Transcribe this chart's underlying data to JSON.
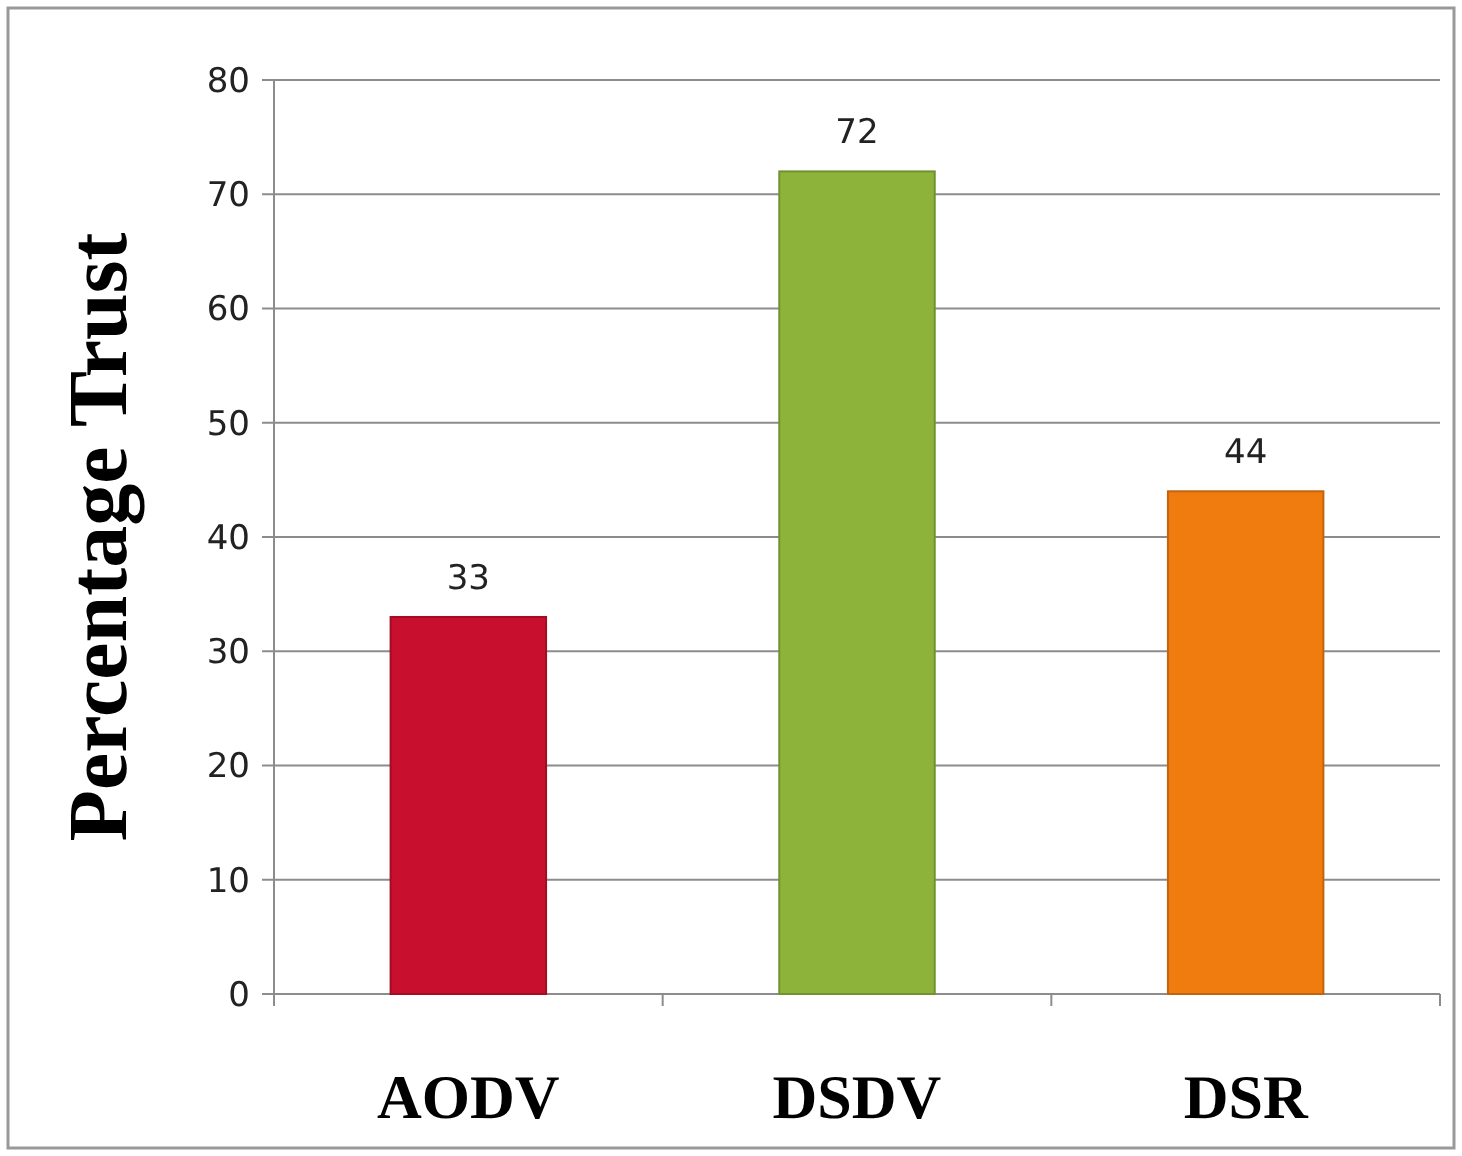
{
  "chart_data": {
    "type": "bar",
    "ylabel": "Percentage Trust",
    "categories": [
      "AODV",
      "DSDV",
      "DSR"
    ],
    "values": [
      33,
      72,
      44
    ],
    "colors": [
      "#c8102e",
      "#8db33a",
      "#f07c10"
    ],
    "ylim": [
      0,
      80
    ],
    "yticks": [
      0,
      10,
      20,
      30,
      40,
      50,
      60,
      70,
      80
    ],
    "grid": "y",
    "data_labels": true
  }
}
